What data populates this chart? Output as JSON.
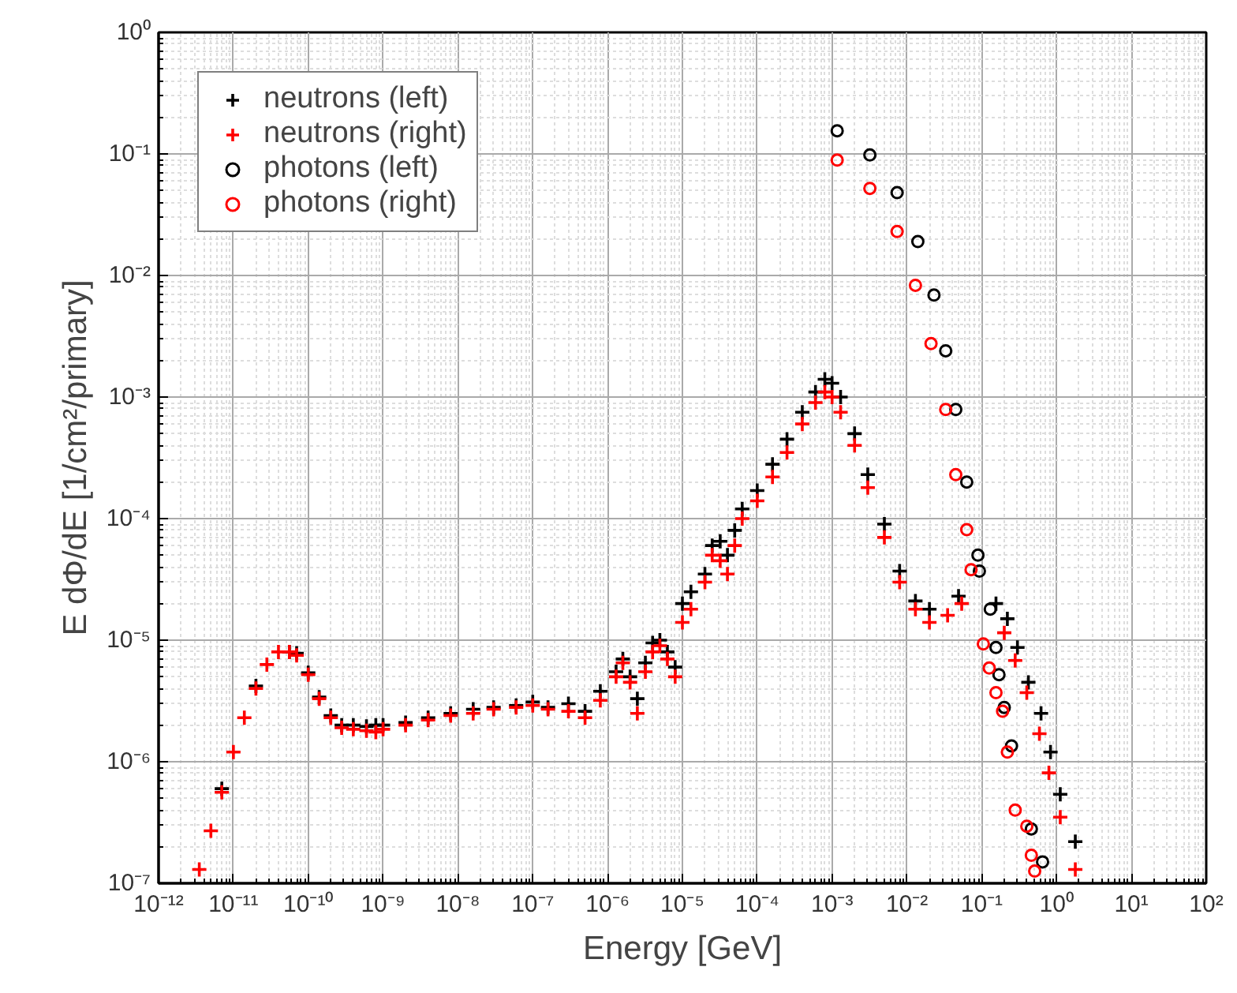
{
  "chart_data": {
    "type": "scatter",
    "xlabel": "Energy [GeV]",
    "ylabel": "E dΦ/dE [1/cm²/primary]",
    "log": "xy",
    "grid": true,
    "legend": "top left",
    "xlim": [
      1e-12,
      100
    ],
    "ylim": [
      1e-07,
      1
    ],
    "xticks": [
      {
        "value": 1e-12,
        "label": "10⁻¹²"
      },
      {
        "value": 1e-11,
        "label": "10⁻¹¹"
      },
      {
        "value": 1e-10,
        "label": "10⁻¹⁰"
      },
      {
        "value": 1e-09,
        "label": "10⁻⁹"
      },
      {
        "value": 1e-08,
        "label": "10⁻⁸"
      },
      {
        "value": 1e-07,
        "label": "10⁻⁷"
      },
      {
        "value": 1e-06,
        "label": "10⁻⁶"
      },
      {
        "value": 1e-05,
        "label": "10⁻⁵"
      },
      {
        "value": 0.0001,
        "label": "10⁻⁴"
      },
      {
        "value": 0.001,
        "label": "10⁻³"
      },
      {
        "value": 0.01,
        "label": "10⁻²"
      },
      {
        "value": 0.1,
        "label": "10⁻¹"
      },
      {
        "value": 1,
        "label": "10⁰"
      },
      {
        "value": 10,
        "label": "10¹"
      },
      {
        "value": 100,
        "label": "10²"
      }
    ],
    "yticks": [
      {
        "value": 1e-07,
        "label": "10⁻⁷"
      },
      {
        "value": 1e-06,
        "label": "10⁻⁶"
      },
      {
        "value": 1e-05,
        "label": "10⁻⁵"
      },
      {
        "value": 0.0001,
        "label": "10⁻⁴"
      },
      {
        "value": 0.001,
        "label": "10⁻³"
      },
      {
        "value": 0.01,
        "label": "10⁻²"
      },
      {
        "value": 0.1,
        "label": "10⁻¹"
      },
      {
        "value": 1,
        "label": "10⁰"
      }
    ],
    "series": [
      {
        "name": "neutrons (left)",
        "color": "#000000",
        "marker": "cross",
        "x": [
          7e-12,
          1e-11,
          1.4e-11,
          2e-11,
          2.8e-11,
          4e-11,
          5.6e-11,
          7e-11,
          1e-10,
          1.4e-10,
          2e-10,
          2.8e-10,
          4e-10,
          6e-10,
          8e-10,
          1e-09,
          2e-09,
          4e-09,
          8e-09,
          1.6e-08,
          3e-08,
          6e-08,
          1e-07,
          1.6e-07,
          3e-07,
          5e-07,
          8e-07,
          1.3e-06,
          1.6e-06,
          2e-06,
          2.5e-06,
          3.2e-06,
          4e-06,
          5e-06,
          6.3e-06,
          8e-06,
          1e-05,
          1.3e-05,
          2e-05,
          2.5e-05,
          3.2e-05,
          4e-05,
          5e-05,
          6.3e-05,
          0.0001,
          0.00016,
          0.00025,
          0.0004,
          0.0006,
          0.0008,
          0.001,
          0.0013,
          0.002,
          0.003,
          0.005,
          0.008,
          0.013,
          0.02,
          0.049,
          0.155,
          0.22,
          0.3,
          0.42,
          0.62,
          0.83,
          1.12,
          1.78
        ],
        "values": [
          6e-07,
          null,
          null,
          4.2e-06,
          null,
          null,
          8e-06,
          7.8e-06,
          5.4e-06,
          3.4e-06,
          2.4e-06,
          2e-06,
          2e-06,
          1.95e-06,
          2e-06,
          2e-06,
          2.1e-06,
          2.3e-06,
          2.5e-06,
          2.7e-06,
          2.8e-06,
          2.9e-06,
          3.1e-06,
          2.8e-06,
          3e-06,
          2.6e-06,
          3.8e-06,
          5.5e-06,
          7e-06,
          5e-06,
          3.3e-06,
          6.5e-06,
          9.5e-06,
          1e-05,
          8e-06,
          6e-06,
          2e-05,
          2.5e-05,
          3.5e-05,
          6e-05,
          6.5e-05,
          5e-05,
          8e-05,
          0.00012,
          0.00017,
          0.00028,
          0.00045,
          0.00075,
          0.0011,
          0.0014,
          0.0013,
          0.001,
          0.0005,
          0.00023,
          9e-05,
          3.7e-05,
          2.1e-05,
          1.8e-05,
          2.3e-05,
          2e-05,
          1.5e-05,
          8.7e-06,
          4.5e-06,
          2.5e-06,
          1.2e-06,
          5.4e-07,
          2.2e-07
        ]
      },
      {
        "name": "neutrons (right)",
        "color": "#ff0000",
        "marker": "cross",
        "x": [
          3.5e-12,
          5e-12,
          7e-12,
          1e-11,
          1.4e-11,
          2e-11,
          2.8e-11,
          4e-11,
          5.6e-11,
          7e-11,
          1e-10,
          1.4e-10,
          2e-10,
          2.8e-10,
          4e-10,
          6e-10,
          8e-10,
          1e-09,
          2e-09,
          4e-09,
          8e-09,
          1.6e-08,
          3e-08,
          6e-08,
          1e-07,
          1.6e-07,
          3e-07,
          5e-07,
          8e-07,
          1.3e-06,
          1.6e-06,
          2e-06,
          2.5e-06,
          3.2e-06,
          4e-06,
          5e-06,
          6.3e-06,
          8e-06,
          1e-05,
          1.3e-05,
          2e-05,
          2.5e-05,
          3.2e-05,
          4e-05,
          5e-05,
          6.3e-05,
          0.0001,
          0.00016,
          0.00025,
          0.0004,
          0.0006,
          0.0008,
          0.001,
          0.0013,
          0.002,
          0.003,
          0.005,
          0.008,
          0.013,
          0.02,
          0.035,
          0.054,
          0.2,
          0.28,
          0.4,
          0.59,
          0.79,
          1.12,
          1.78
        ],
        "values": [
          1.3e-07,
          2.7e-07,
          5.6e-07,
          1.2e-06,
          2.3e-06,
          4e-06,
          6.3e-06,
          8e-06,
          8e-06,
          7.5e-06,
          5.2e-06,
          3.3e-06,
          2.3e-06,
          1.9e-06,
          1.85e-06,
          1.8e-06,
          1.75e-06,
          1.85e-06,
          2e-06,
          2.2e-06,
          2.4e-06,
          2.5e-06,
          2.7e-06,
          2.8e-06,
          2.9e-06,
          2.7e-06,
          2.6e-06,
          2.3e-06,
          3.2e-06,
          5e-06,
          6.5e-06,
          4.5e-06,
          2.5e-06,
          5.5e-06,
          8e-06,
          9e-06,
          7e-06,
          5e-06,
          1.4e-05,
          1.8e-05,
          3e-05,
          5e-05,
          4.5e-05,
          3.5e-05,
          6e-05,
          0.0001,
          0.00014,
          0.00022,
          0.00035,
          0.0006,
          0.0009,
          0.0011,
          0.001,
          0.00075,
          0.0004,
          0.00018,
          7e-05,
          3e-05,
          1.8e-05,
          1.4e-05,
          1.6e-05,
          2e-05,
          1.15e-05,
          6.8e-06,
          3.7e-06,
          1.7e-06,
          8.1e-07,
          3.5e-07,
          1.3e-07
        ]
      },
      {
        "name": "photons (left)",
        "color": "#000000",
        "marker": "circle",
        "x": [
          0.00117,
          0.0032,
          0.0074,
          0.014,
          0.023,
          0.033,
          0.045,
          0.063,
          0.089,
          0.093,
          0.13,
          0.155,
          0.17,
          0.2,
          0.25,
          0.46,
          0.65
        ],
        "values": [
          0.155,
          0.098,
          0.048,
          0.019,
          0.0069,
          0.0024,
          0.00079,
          0.0002,
          5e-05,
          3.7e-05,
          1.8e-05,
          8.7e-06,
          5.2e-06,
          2.8e-06,
          1.35e-06,
          2.8e-07,
          1.5e-07
        ]
      },
      {
        "name": "photons (right)",
        "color": "#ff0000",
        "marker": "circle",
        "x": [
          0.00117,
          0.0032,
          0.0074,
          0.013,
          0.021,
          0.033,
          0.045,
          0.063,
          0.072,
          0.105,
          0.126,
          0.155,
          0.19,
          0.22,
          0.28,
          0.4,
          0.46,
          0.51
        ],
        "values": [
          0.089,
          0.052,
          0.023,
          0.0083,
          0.00275,
          0.00079,
          0.00023,
          8.1e-05,
          3.8e-05,
          9.3e-06,
          5.9e-06,
          3.7e-06,
          2.6e-06,
          1.2e-06,
          4e-07,
          2.95e-07,
          1.7e-07,
          1.26e-07
        ]
      }
    ]
  }
}
